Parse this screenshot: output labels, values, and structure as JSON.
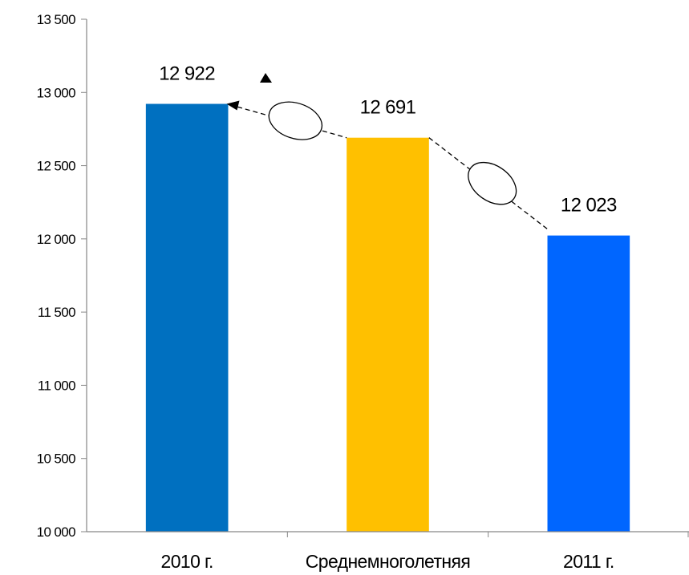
{
  "chart_data": {
    "type": "bar",
    "title": "",
    "xlabel": "",
    "ylabel": "",
    "categories": [
      "2010 г.",
      "Среднемноголетняя",
      "2011 г."
    ],
    "values": [
      12922,
      12691,
      12023
    ],
    "value_labels": [
      "12 922",
      "12 691",
      "12 023"
    ],
    "bar_colors": [
      "#0070C0",
      "#FFC000",
      "#0066FF"
    ],
    "ylim": [
      10000,
      13500
    ],
    "yticks": [
      10000,
      10500,
      11000,
      11500,
      12000,
      12500,
      13000,
      13500
    ],
    "ytick_labels": [
      "10 000",
      "10 500",
      "11 000",
      "11 500",
      "12 000",
      "12 500",
      "13 000",
      "13 500"
    ],
    "grid": false,
    "legend": "none"
  }
}
